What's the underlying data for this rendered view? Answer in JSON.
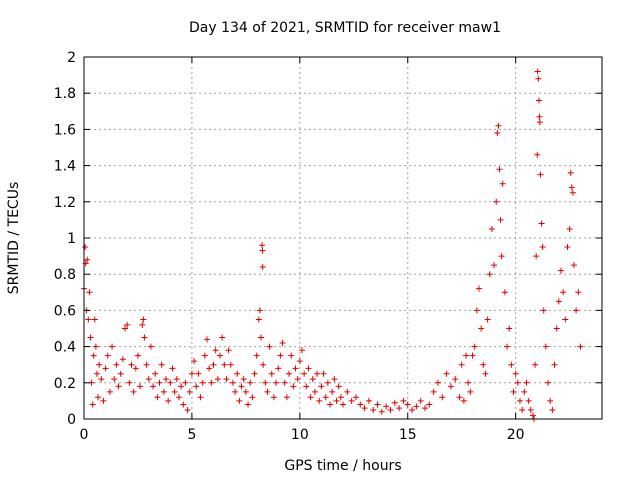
{
  "chart_data": {
    "type": "scatter",
    "title": "Day 134 of 2021, SRMTID for receiver maw1",
    "xlabel": "GPS time / hours",
    "ylabel": "SRMTID / TECUs",
    "xlim": [
      0,
      24
    ],
    "ylim": [
      0,
      2
    ],
    "xticks": [
      0,
      5,
      10,
      15,
      20
    ],
    "xtick_labels": [
      "0",
      "5",
      "10",
      "15",
      "20"
    ],
    "yticks": [
      0,
      0.2,
      0.4,
      0.6,
      0.8,
      1,
      1.2,
      1.4,
      1.6,
      1.8,
      2
    ],
    "ytick_labels": [
      "0",
      "0.2",
      "0.4",
      "0.6",
      "0.8",
      "1",
      "1.2",
      "1.4",
      "1.6",
      "1.8",
      "2"
    ],
    "grid": true,
    "marker": "+",
    "color": "#e00000",
    "series": [
      {
        "name": "SRMTID",
        "points": [
          [
            0.0,
            0.72
          ],
          [
            0.05,
            0.95
          ],
          [
            0.08,
            0.86
          ],
          [
            0.12,
            0.6
          ],
          [
            0.15,
            0.88
          ],
          [
            0.2,
            0.55
          ],
          [
            0.25,
            0.7
          ],
          [
            0.3,
            0.45
          ],
          [
            0.35,
            0.2
          ],
          [
            0.4,
            0.08
          ],
          [
            0.45,
            0.35
          ],
          [
            0.5,
            0.55
          ],
          [
            0.55,
            0.4
          ],
          [
            0.6,
            0.25
          ],
          [
            0.65,
            0.12
          ],
          [
            0.7,
            0.3
          ],
          [
            0.8,
            0.22
          ],
          [
            0.9,
            0.1
          ],
          [
            1.0,
            0.28
          ],
          [
            1.1,
            0.35
          ],
          [
            1.2,
            0.15
          ],
          [
            1.3,
            0.4
          ],
          [
            1.4,
            0.22
          ],
          [
            1.5,
            0.3
          ],
          [
            1.6,
            0.18
          ],
          [
            1.7,
            0.25
          ],
          [
            1.8,
            0.33
          ],
          [
            1.9,
            0.5
          ],
          [
            2.0,
            0.52
          ],
          [
            2.1,
            0.2
          ],
          [
            2.2,
            0.3
          ],
          [
            2.3,
            0.15
          ],
          [
            2.4,
            0.28
          ],
          [
            2.5,
            0.35
          ],
          [
            2.6,
            0.18
          ],
          [
            2.7,
            0.52
          ],
          [
            2.75,
            0.55
          ],
          [
            2.8,
            0.45
          ],
          [
            2.9,
            0.3
          ],
          [
            3.0,
            0.22
          ],
          [
            3.1,
            0.4
          ],
          [
            3.2,
            0.18
          ],
          [
            3.3,
            0.25
          ],
          [
            3.4,
            0.12
          ],
          [
            3.5,
            0.2
          ],
          [
            3.6,
            0.3
          ],
          [
            3.7,
            0.15
          ],
          [
            3.8,
            0.22
          ],
          [
            3.9,
            0.1
          ],
          [
            4.0,
            0.2
          ],
          [
            4.1,
            0.28
          ],
          [
            4.2,
            0.15
          ],
          [
            4.3,
            0.22
          ],
          [
            4.4,
            0.12
          ],
          [
            4.5,
            0.18
          ],
          [
            4.6,
            0.08
          ],
          [
            4.7,
            0.2
          ],
          [
            4.8,
            0.05
          ],
          [
            4.9,
            0.15
          ],
          [
            5.0,
            0.25
          ],
          [
            5.1,
            0.32
          ],
          [
            5.2,
            0.18
          ],
          [
            5.3,
            0.25
          ],
          [
            5.4,
            0.12
          ],
          [
            5.5,
            0.2
          ],
          [
            5.6,
            0.35
          ],
          [
            5.7,
            0.44
          ],
          [
            5.8,
            0.28
          ],
          [
            5.9,
            0.2
          ],
          [
            6.0,
            0.3
          ],
          [
            6.1,
            0.38
          ],
          [
            6.2,
            0.22
          ],
          [
            6.3,
            0.35
          ],
          [
            6.4,
            0.45
          ],
          [
            6.5,
            0.3
          ],
          [
            6.6,
            0.22
          ],
          [
            6.7,
            0.38
          ],
          [
            6.8,
            0.3
          ],
          [
            6.9,
            0.2
          ],
          [
            7.0,
            0.15
          ],
          [
            7.1,
            0.25
          ],
          [
            7.2,
            0.1
          ],
          [
            7.3,
            0.18
          ],
          [
            7.4,
            0.22
          ],
          [
            7.5,
            0.15
          ],
          [
            7.6,
            0.08
          ],
          [
            7.7,
            0.2
          ],
          [
            7.8,
            0.12
          ],
          [
            7.9,
            0.25
          ],
          [
            8.0,
            0.35
          ],
          [
            8.1,
            0.55
          ],
          [
            8.15,
            0.6
          ],
          [
            8.2,
            0.45
          ],
          [
            8.25,
            0.96
          ],
          [
            8.27,
            0.93
          ],
          [
            8.28,
            0.84
          ],
          [
            8.3,
            0.3
          ],
          [
            8.4,
            0.2
          ],
          [
            8.5,
            0.15
          ],
          [
            8.6,
            0.4
          ],
          [
            8.7,
            0.25
          ],
          [
            8.8,
            0.12
          ],
          [
            8.9,
            0.2
          ],
          [
            9.0,
            0.28
          ],
          [
            9.1,
            0.35
          ],
          [
            9.2,
            0.42
          ],
          [
            9.3,
            0.2
          ],
          [
            9.4,
            0.12
          ],
          [
            9.5,
            0.25
          ],
          [
            9.6,
            0.35
          ],
          [
            9.7,
            0.18
          ],
          [
            9.8,
            0.28
          ],
          [
            9.9,
            0.22
          ],
          [
            10.0,
            0.32
          ],
          [
            10.1,
            0.38
          ],
          [
            10.2,
            0.25
          ],
          [
            10.3,
            0.18
          ],
          [
            10.4,
            0.28
          ],
          [
            10.5,
            0.12
          ],
          [
            10.6,
            0.22
          ],
          [
            10.7,
            0.15
          ],
          [
            10.8,
            0.25
          ],
          [
            10.9,
            0.1
          ],
          [
            11.0,
            0.18
          ],
          [
            11.1,
            0.25
          ],
          [
            11.2,
            0.12
          ],
          [
            11.3,
            0.2
          ],
          [
            11.4,
            0.08
          ],
          [
            11.5,
            0.15
          ],
          [
            11.6,
            0.22
          ],
          [
            11.7,
            0.1
          ],
          [
            11.8,
            0.18
          ],
          [
            11.9,
            0.12
          ],
          [
            12.0,
            0.08
          ],
          [
            12.2,
            0.15
          ],
          [
            12.4,
            0.1
          ],
          [
            12.6,
            0.12
          ],
          [
            12.8,
            0.08
          ],
          [
            13.0,
            0.06
          ],
          [
            13.2,
            0.1
          ],
          [
            13.4,
            0.05
          ],
          [
            13.6,
            0.08
          ],
          [
            13.8,
            0.04
          ],
          [
            14.0,
            0.07
          ],
          [
            14.2,
            0.05
          ],
          [
            14.4,
            0.09
          ],
          [
            14.6,
            0.06
          ],
          [
            14.8,
            0.1
          ],
          [
            15.0,
            0.08
          ],
          [
            15.2,
            0.05
          ],
          [
            15.4,
            0.07
          ],
          [
            15.6,
            0.1
          ],
          [
            15.8,
            0.06
          ],
          [
            16.0,
            0.08
          ],
          [
            16.2,
            0.15
          ],
          [
            16.4,
            0.2
          ],
          [
            16.6,
            0.12
          ],
          [
            16.8,
            0.25
          ],
          [
            17.0,
            0.18
          ],
          [
            17.2,
            0.22
          ],
          [
            17.4,
            0.12
          ],
          [
            17.5,
            0.3
          ],
          [
            17.6,
            0.1
          ],
          [
            17.7,
            0.35
          ],
          [
            17.8,
            0.2
          ],
          [
            17.9,
            0.15
          ],
          [
            18.0,
            0.35
          ],
          [
            18.1,
            0.4
          ],
          [
            18.2,
            0.6
          ],
          [
            18.3,
            0.72
          ],
          [
            18.4,
            0.5
          ],
          [
            18.5,
            0.3
          ],
          [
            18.6,
            0.25
          ],
          [
            18.7,
            0.55
          ],
          [
            18.8,
            0.8
          ],
          [
            18.9,
            1.05
          ],
          [
            19.0,
            0.85
          ],
          [
            19.1,
            1.2
          ],
          [
            19.15,
            1.58
          ],
          [
            19.2,
            1.62
          ],
          [
            19.25,
            1.38
          ],
          [
            19.3,
            1.1
          ],
          [
            19.35,
            0.9
          ],
          [
            19.4,
            1.3
          ],
          [
            19.5,
            0.7
          ],
          [
            19.6,
            0.4
          ],
          [
            19.7,
            0.5
          ],
          [
            19.8,
            0.3
          ],
          [
            19.9,
            0.15
          ],
          [
            20.0,
            0.25
          ],
          [
            20.1,
            0.2
          ],
          [
            20.2,
            0.1
          ],
          [
            20.3,
            0.05
          ],
          [
            20.4,
            0.15
          ],
          [
            20.5,
            0.2
          ],
          [
            20.6,
            0.1
          ],
          [
            20.7,
            0.05
          ],
          [
            20.8,
            0.02
          ],
          [
            20.85,
            0.0
          ],
          [
            20.9,
            0.3
          ],
          [
            20.95,
            0.9
          ],
          [
            21.0,
            1.46
          ],
          [
            21.02,
            1.92
          ],
          [
            21.05,
            1.88
          ],
          [
            21.08,
            1.76
          ],
          [
            21.1,
            1.67
          ],
          [
            21.12,
            1.64
          ],
          [
            21.15,
            1.35
          ],
          [
            21.2,
            1.08
          ],
          [
            21.25,
            0.95
          ],
          [
            21.3,
            0.6
          ],
          [
            21.4,
            0.4
          ],
          [
            21.5,
            0.2
          ],
          [
            21.6,
            0.1
          ],
          [
            21.7,
            0.05
          ],
          [
            21.8,
            0.3
          ],
          [
            21.9,
            0.5
          ],
          [
            22.0,
            0.65
          ],
          [
            22.1,
            0.82
          ],
          [
            22.2,
            0.7
          ],
          [
            22.3,
            0.55
          ],
          [
            22.4,
            0.95
          ],
          [
            22.5,
            1.05
          ],
          [
            22.55,
            1.36
          ],
          [
            22.6,
            1.28
          ],
          [
            22.65,
            1.25
          ],
          [
            22.7,
            0.85
          ],
          [
            22.8,
            0.6
          ],
          [
            22.9,
            0.7
          ],
          [
            23.0,
            0.4
          ]
        ]
      }
    ]
  }
}
